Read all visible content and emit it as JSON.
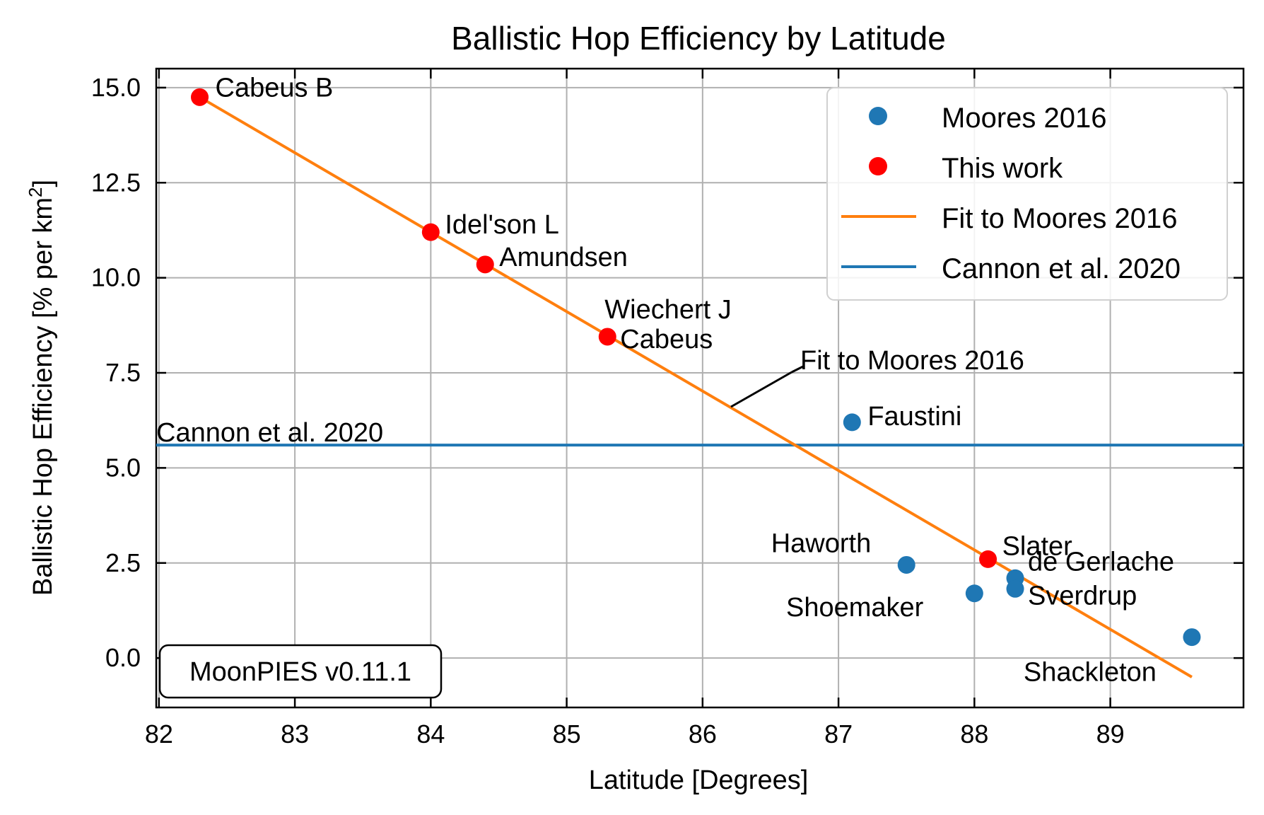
{
  "chart_data": {
    "type": "scatter",
    "title": "Ballistic Hop Efficiency by Latitude",
    "xlabel": "Latitude [Degrees]",
    "ylabel_main": "Ballistic Hop Efficiency [% per km",
    "ylabel_sup": "2",
    "ylabel_end": "]",
    "xlim": [
      81.98,
      89.98
    ],
    "ylim": [
      -1.3,
      15.5
    ],
    "x_ticks": [
      82,
      83,
      84,
      85,
      86,
      87,
      88,
      89
    ],
    "y_ticks": [
      0.0,
      2.5,
      5.0,
      7.5,
      10.0,
      12.5,
      15.0
    ],
    "x_tick_labels": [
      "82",
      "83",
      "84",
      "85",
      "86",
      "87",
      "88",
      "89"
    ],
    "y_tick_labels": [
      "0.0",
      "2.5",
      "5.0",
      "7.5",
      "10.0",
      "12.5",
      "15.0"
    ],
    "grid": true,
    "legend_position": "top-right",
    "series": [
      {
        "name": "Moores 2016",
        "kind": "scatter",
        "color": "#1f77b4",
        "points": [
          {
            "label": "Faustini",
            "x": 87.1,
            "y": 6.2
          },
          {
            "label": "Haworth",
            "x": 87.5,
            "y": 2.45
          },
          {
            "label": "Shoemaker",
            "x": 88.0,
            "y": 1.7
          },
          {
            "label": "de Gerlache",
            "x": 88.3,
            "y": 2.1
          },
          {
            "label": "Sverdrup",
            "x": 88.3,
            "y": 1.82
          },
          {
            "label": "Shackleton",
            "x": 89.6,
            "y": 0.55
          }
        ]
      },
      {
        "name": "This work",
        "kind": "scatter",
        "color": "#ff0000",
        "points": [
          {
            "label": "Cabeus B",
            "x": 82.3,
            "y": 14.75
          },
          {
            "label": "Idel'son L",
            "x": 84.0,
            "y": 11.2
          },
          {
            "label": "Amundsen",
            "x": 84.4,
            "y": 10.35
          },
          {
            "label": "Wiechert J",
            "x": 85.3,
            "y": 8.45
          },
          {
            "label": "Cabeus",
            "x": 85.3,
            "y": 8.45
          },
          {
            "label": "Slater",
            "x": 88.1,
            "y": 2.6
          }
        ]
      },
      {
        "name": "Fit to Moores 2016",
        "kind": "line",
        "color": "#ff7f0e",
        "x": [
          82.3,
          89.6
        ],
        "y": [
          14.75,
          -0.5
        ]
      },
      {
        "name": "Cannon et al. 2020",
        "kind": "hline",
        "color": "#1f77b4",
        "y": 5.6
      }
    ],
    "annotations": {
      "fit_label": "Fit to Moores 2016",
      "cannon_label": "Cannon et al. 2020",
      "version_box": "MoonPIES v0.11.1"
    }
  }
}
